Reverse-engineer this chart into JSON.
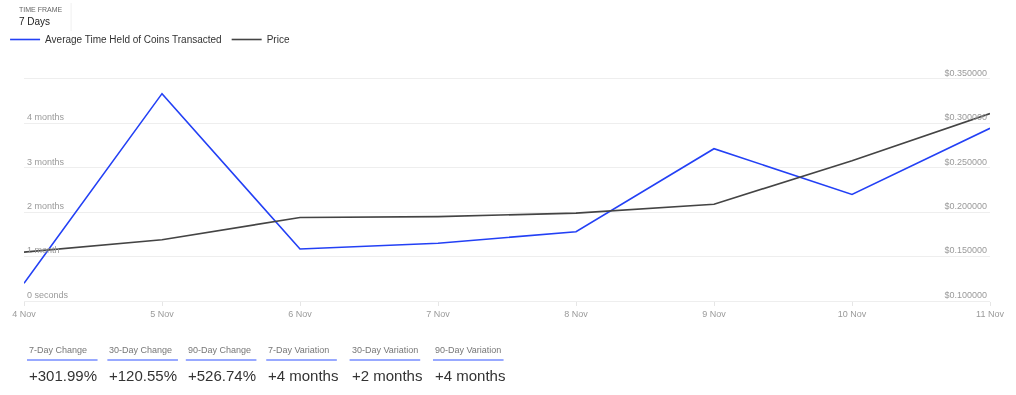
{
  "chart_data": {
    "type": "line",
    "x": [
      "--11-04",
      "--11-05",
      "--11-06",
      "--11-07",
      "--11-08",
      "--11-09",
      "--11-10",
      "--11-11"
    ],
    "series": [
      {
        "name": "Average Time Held of Coins Transacted",
        "color": "#2340f5",
        "values": [
          0.4,
          4.67,
          1.17,
          1.3,
          1.56,
          3.43,
          2.4,
          3.89
        ]
      },
      {
        "name": "Price",
        "color": "#444444",
        "axis": "y2",
        "values": [
          0.155,
          0.169,
          0.194,
          0.195,
          0.199,
          0.209,
          0.258,
          0.311
        ]
      }
    ],
    "xlim": [
      "--11-04",
      "--11-11"
    ],
    "xticks": [
      {
        "value": "--11-04",
        "label": "4 Nov"
      },
      {
        "value": "--11-05",
        "label": "5 Nov"
      },
      {
        "value": "--11-06",
        "label": "6 Nov"
      },
      {
        "value": "--11-07",
        "label": "7 Nov"
      },
      {
        "value": "--11-08",
        "label": "8 Nov"
      },
      {
        "value": "--11-09",
        "label": "9 Nov"
      },
      {
        "value": "--11-10",
        "label": "10 Nov"
      },
      {
        "value": "--11-11",
        "label": "11 Nov"
      }
    ],
    "ylim": [
      0,
      5
    ],
    "yticks": [
      {
        "value": 0,
        "label": "0 seconds"
      },
      {
        "value": 1,
        "label": "1 month"
      },
      {
        "value": 2,
        "label": "2 months"
      },
      {
        "value": 3,
        "label": "3 months"
      },
      {
        "value": 4,
        "label": "4 months"
      },
      {
        "value": 5,
        "label": null
      }
    ],
    "y2lim": [
      0.1,
      0.35
    ],
    "y2ticks": [
      {
        "value": 0.1,
        "label": "$0.100000"
      },
      {
        "value": 0.15,
        "label": "$0.150000"
      },
      {
        "value": 0.2,
        "label": "$0.200000"
      },
      {
        "value": 0.25,
        "label": "$0.250000"
      },
      {
        "value": 0.3,
        "label": "$0.300000"
      },
      {
        "value": 0.35,
        "label": "$0.350000"
      }
    ],
    "grid": "y",
    "legend": "top left",
    "line_style": "solid",
    "annotations": [
      "TIME FRAME",
      "7 Days",
      "7-Day Change",
      "+301.99%",
      "30-Day Change",
      "+120.55%",
      "90-Day Change",
      "+526.74%",
      "7-Day Variation",
      "+4 months",
      "30-Day Variation",
      "+2 months",
      "90-Day Variation",
      "+4 months"
    ]
  }
}
